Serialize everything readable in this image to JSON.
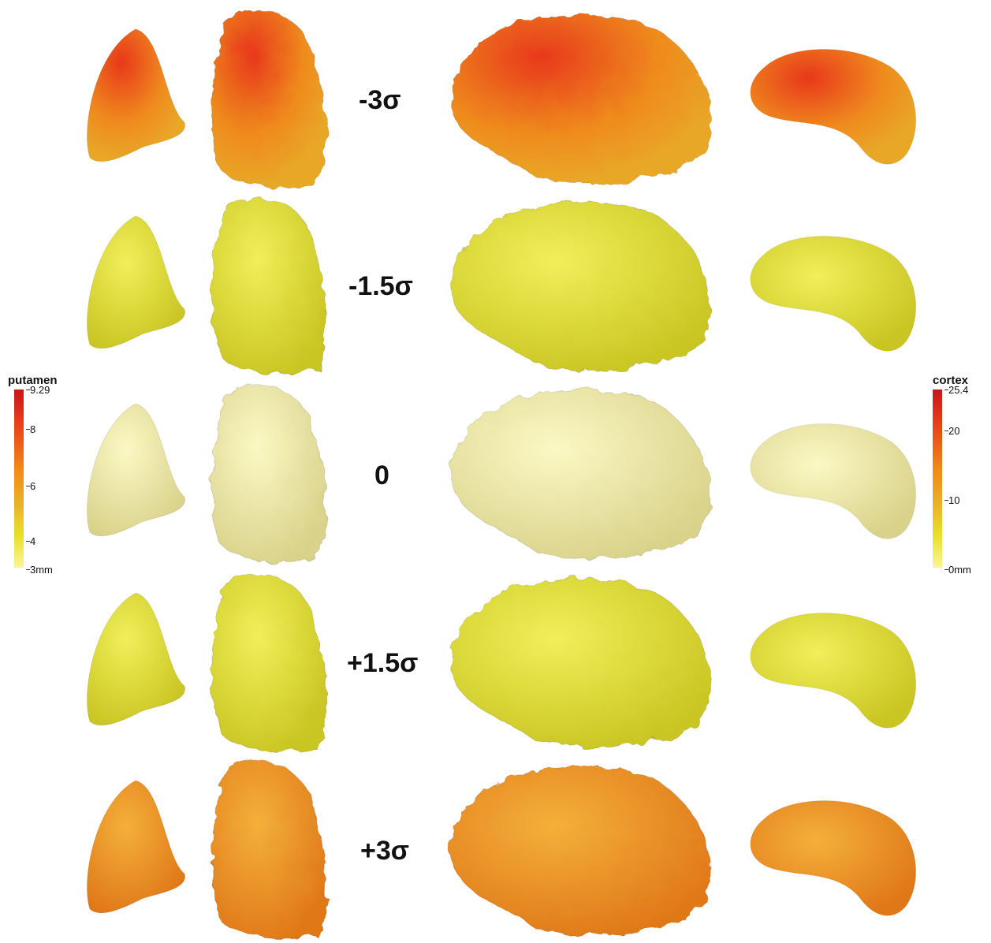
{
  "rows": [
    {
      "label": "-3σ",
      "level": 3
    },
    {
      "label": "-1.5σ",
      "level": 1
    },
    {
      "label": "0",
      "level": 0
    },
    {
      "label": "+1.5σ",
      "level": 1
    },
    {
      "label": "+3σ",
      "level": 2
    }
  ],
  "colorbars": {
    "putamen": {
      "title": "putamen",
      "ticks": [
        "9.29",
        "8",
        "6",
        "4",
        "3mm"
      ]
    },
    "cortex": {
      "title": "cortex",
      "ticks": [
        "25.4",
        "20",
        "10",
        "0mm"
      ]
    }
  },
  "palette": {
    "neutral": "#f4f0a8",
    "level1": "#dede3a",
    "level2": "#ec9a22",
    "level3": "#e4501c"
  }
}
